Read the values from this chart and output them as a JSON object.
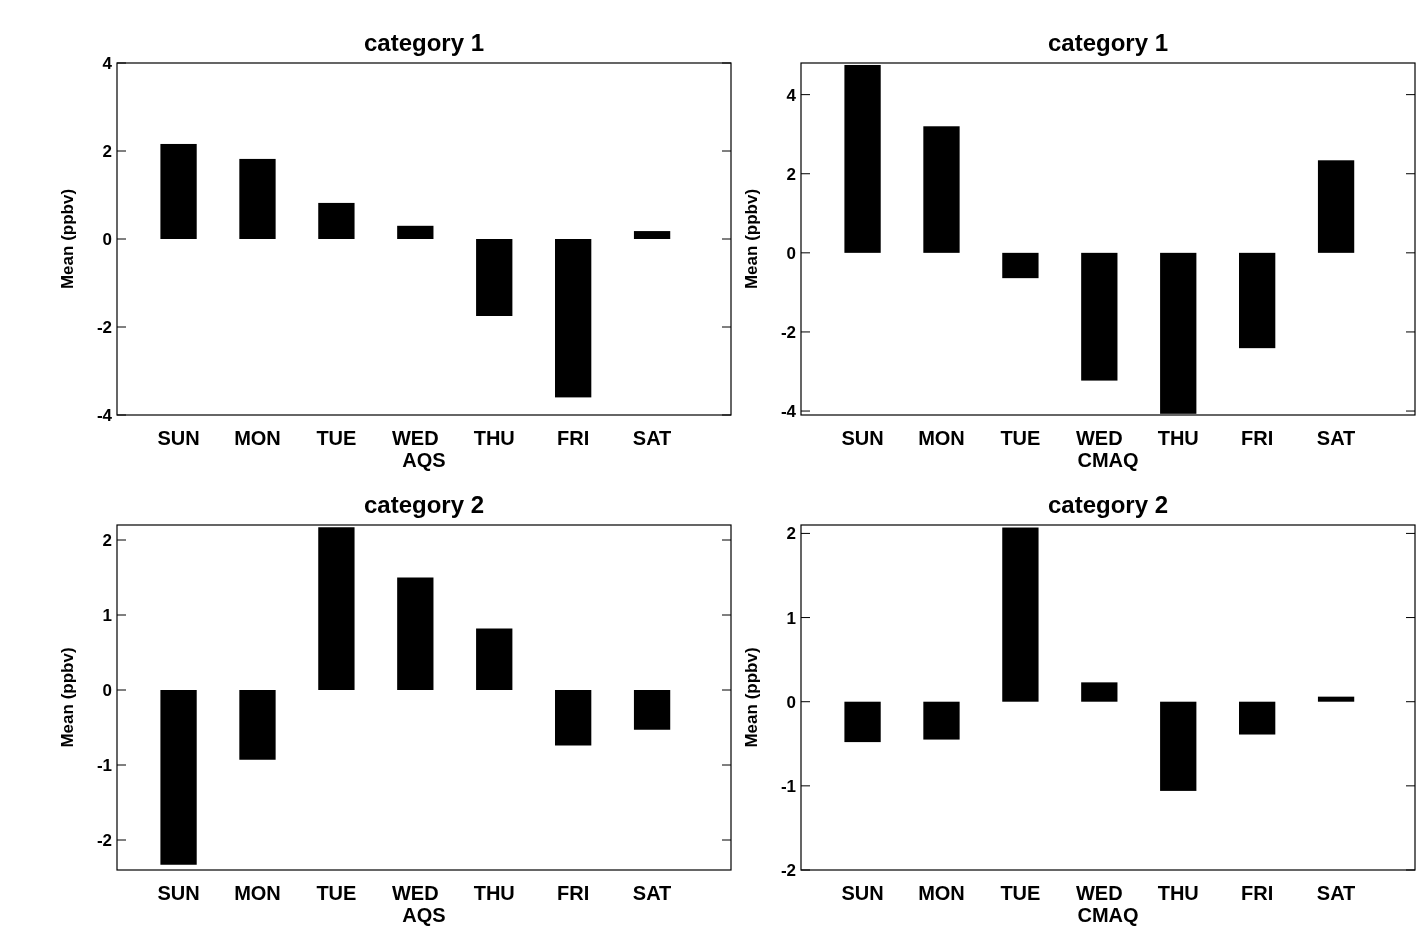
{
  "chart_data": [
    {
      "type": "bar",
      "title": "category 1",
      "xlabel": "AQS",
      "ylabel": "Mean (ppbv)",
      "categories": [
        "SUN",
        "MON",
        "TUE",
        "WED",
        "THU",
        "FRI",
        "SAT"
      ],
      "values": [
        2.16,
        1.82,
        0.82,
        0.3,
        -1.75,
        -3.6,
        0.18
      ],
      "color": "#000000",
      "ylim": [
        -4,
        4
      ],
      "yticks": [
        -4,
        -2,
        0,
        2,
        4
      ],
      "grid": false
    },
    {
      "type": "bar",
      "title": "category 1",
      "xlabel": "CMAQ",
      "ylabel": "Mean (ppbv)",
      "categories": [
        "SUN",
        "MON",
        "TUE",
        "WED",
        "THU",
        "FRI",
        "SAT"
      ],
      "values": [
        4.75,
        3.2,
        -0.64,
        -3.23,
        -4.07,
        -2.41,
        2.34
      ],
      "color": "#000000",
      "ylim": [
        -4.1,
        4.8
      ],
      "yticks": [
        -4,
        -2,
        0,
        2,
        4
      ],
      "grid": false
    },
    {
      "type": "bar",
      "title": "category 2",
      "xlabel": "AQS",
      "ylabel": "Mean (ppbv)",
      "categories": [
        "SUN",
        "MON",
        "TUE",
        "WED",
        "THU",
        "FRI",
        "SAT"
      ],
      "values": [
        -2.33,
        -0.93,
        2.17,
        1.5,
        0.82,
        -0.74,
        -0.53
      ],
      "color": "#000000",
      "ylim": [
        -2.4,
        2.2
      ],
      "yticks": [
        -2,
        -1,
        0,
        1,
        2
      ],
      "grid": false
    },
    {
      "type": "bar",
      "title": "category 2",
      "xlabel": "CMAQ",
      "ylabel": "Mean (ppbv)",
      "categories": [
        "SUN",
        "MON",
        "TUE",
        "WED",
        "THU",
        "FRI",
        "SAT"
      ],
      "values": [
        -0.48,
        -0.45,
        2.07,
        0.23,
        -1.06,
        -0.39,
        0.06
      ],
      "color": "#000000",
      "ylim": [
        -2,
        2.1
      ],
      "yticks": [
        -2,
        -1,
        0,
        1,
        2
      ],
      "grid": false
    }
  ]
}
